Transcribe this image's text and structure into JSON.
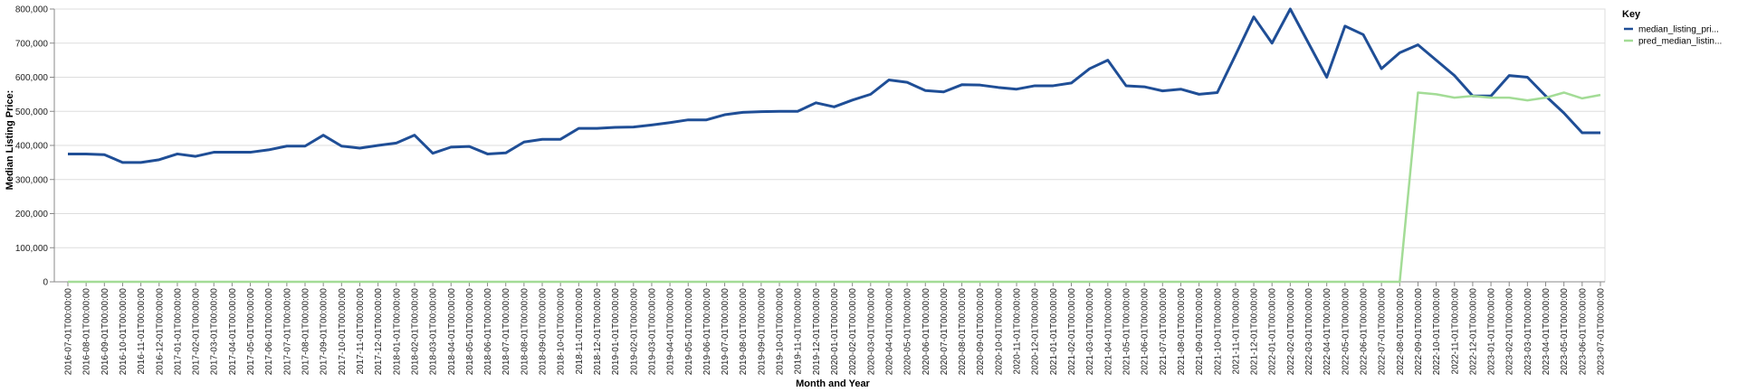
{
  "chart_data": {
    "type": "line",
    "title": "",
    "xlabel": "Month and Year",
    "ylabel": "Median Listing Price:",
    "ylim": [
      0,
      800000
    ],
    "yticks": [
      0,
      100000,
      200000,
      300000,
      400000,
      500000,
      600000,
      700000,
      800000
    ],
    "ytick_labels": [
      "0",
      "100,000",
      "200,000",
      "300,000",
      "400,000",
      "500,000",
      "600,000",
      "700,000",
      "800,000"
    ],
    "grid": true,
    "legend_position": "right",
    "legend_title": "Key",
    "x": [
      "2016-07-01T00:00:00",
      "2016-08-01T00:00:00",
      "2016-09-01T00:00:00",
      "2016-10-01T00:00:00",
      "2016-11-01T00:00:00",
      "2016-12-01T00:00:00",
      "2017-01-01T00:00:00",
      "2017-02-01T00:00:00",
      "2017-03-01T00:00:00",
      "2017-04-01T00:00:00",
      "2017-05-01T00:00:00",
      "2017-06-01T00:00:00",
      "2017-07-01T00:00:00",
      "2017-08-01T00:00:00",
      "2017-09-01T00:00:00",
      "2017-10-01T00:00:00",
      "2017-11-01T00:00:00",
      "2017-12-01T00:00:00",
      "2018-01-01T00:00:00",
      "2018-02-01T00:00:00",
      "2018-03-01T00:00:00",
      "2018-04-01T00:00:00",
      "2018-05-01T00:00:00",
      "2018-06-01T00:00:00",
      "2018-07-01T00:00:00",
      "2018-08-01T00:00:00",
      "2018-09-01T00:00:00",
      "2018-10-01T00:00:00",
      "2018-11-01T00:00:00",
      "2018-12-01T00:00:00",
      "2019-01-01T00:00:00",
      "2019-02-01T00:00:00",
      "2019-03-01T00:00:00",
      "2019-04-01T00:00:00",
      "2019-05-01T00:00:00",
      "2019-06-01T00:00:00",
      "2019-07-01T00:00:00",
      "2019-08-01T00:00:00",
      "2019-09-01T00:00:00",
      "2019-10-01T00:00:00",
      "2019-11-01T00:00:00",
      "2019-12-01T00:00:00",
      "2020-01-01T00:00:00",
      "2020-02-01T00:00:00",
      "2020-03-01T00:00:00",
      "2020-04-01T00:00:00",
      "2020-05-01T00:00:00",
      "2020-06-01T00:00:00",
      "2020-07-01T00:00:00",
      "2020-08-01T00:00:00",
      "2020-09-01T00:00:00",
      "2020-10-01T00:00:00",
      "2020-11-01T00:00:00",
      "2020-12-01T00:00:00",
      "2021-01-01T00:00:00",
      "2021-02-01T00:00:00",
      "2021-03-01T00:00:00",
      "2021-04-01T00:00:00",
      "2021-05-01T00:00:00",
      "2021-06-01T00:00:00",
      "2021-07-01T00:00:00",
      "2021-08-01T00:00:00",
      "2021-09-01T00:00:00",
      "2021-10-01T00:00:00",
      "2021-11-01T00:00:00",
      "2021-12-01T00:00:00",
      "2022-01-01T00:00:00",
      "2022-02-01T00:00:00",
      "2022-03-01T00:00:00",
      "2022-04-01T00:00:00",
      "2022-05-01T00:00:00",
      "2022-06-01T00:00:00",
      "2022-07-01T00:00:00",
      "2022-08-01T00:00:00",
      "2022-09-01T00:00:00",
      "2022-10-01T00:00:00",
      "2022-11-01T00:00:00",
      "2022-12-01T00:00:00",
      "2023-01-01T00:00:00",
      "2023-02-01T00:00:00",
      "2023-03-01T00:00:00",
      "2023-04-01T00:00:00",
      "2023-05-01T00:00:00",
      "2023-06-01T00:00:00",
      "2023-07-01T00:00:00"
    ],
    "series": [
      {
        "name": "median_listing_pri...",
        "color": "#1f4e96",
        "values": [
          375000,
          375000,
          373000,
          350000,
          350000,
          358000,
          375000,
          368000,
          380000,
          380000,
          380000,
          387000,
          398000,
          398000,
          430000,
          398000,
          392000,
          400000,
          407000,
          430000,
          377000,
          395000,
          397000,
          375000,
          378000,
          410000,
          418000,
          418000,
          450000,
          450000,
          453000,
          454000,
          460000,
          467000,
          475000,
          475000,
          490000,
          497000,
          499000,
          500000,
          500000,
          525000,
          513000,
          533000,
          550000,
          592000,
          585000,
          561000,
          557000,
          578000,
          577000,
          570000,
          565000,
          575000,
          575000,
          583000,
          625000,
          650000,
          575000,
          572000,
          560000,
          565000,
          550000,
          555000,
          665000,
          777000,
          700000,
          800000,
          700000,
          600000,
          750000,
          725000,
          625000,
          672000,
          695000,
          650000,
          605000,
          545000,
          545000,
          605000,
          600000,
          545000,
          495000,
          437000,
          437000
        ]
      },
      {
        "name": "pred_median_listin...",
        "color": "#a3dc96",
        "values": [
          0,
          0,
          0,
          0,
          0,
          0,
          0,
          0,
          0,
          0,
          0,
          0,
          0,
          0,
          0,
          0,
          0,
          0,
          0,
          0,
          0,
          0,
          0,
          0,
          0,
          0,
          0,
          0,
          0,
          0,
          0,
          0,
          0,
          0,
          0,
          0,
          0,
          0,
          0,
          0,
          0,
          0,
          0,
          0,
          0,
          0,
          0,
          0,
          0,
          0,
          0,
          0,
          0,
          0,
          0,
          0,
          0,
          0,
          0,
          0,
          0,
          0,
          0,
          0,
          0,
          0,
          0,
          0,
          0,
          0,
          0,
          0,
          0,
          0,
          555000,
          550000,
          540000,
          545000,
          540000,
          540000,
          532000,
          540000,
          555000,
          538000,
          548000
        ]
      }
    ]
  }
}
